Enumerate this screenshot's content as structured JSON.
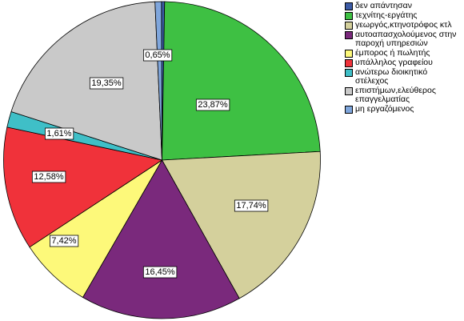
{
  "chart_data": {
    "type": "pie",
    "start_angle_deg": -0.2,
    "direction": "clockwise",
    "slices": [
      {
        "label": "δεν απάντησαν",
        "value": 0.32,
        "pct_label": "",
        "color": "#3c5ba6"
      },
      {
        "label": "τεχνίτης-εργάτης",
        "value": 23.87,
        "pct_label": "23,87%",
        "color": "#3ec043"
      },
      {
        "label": "γεωργός,κτηνοτρόφος κτλ",
        "value": 17.74,
        "pct_label": "17,74%",
        "color": "#d4d09c"
      },
      {
        "label": "αυτοαπασχολούμενος στην\nπαροχή υπηρεσιών",
        "value": 16.45,
        "pct_label": "16,45%",
        "color": "#7a297c"
      },
      {
        "label": "έμπορος ή πωλητής",
        "value": 7.42,
        "pct_label": "7,42%",
        "color": "#fdf97a"
      },
      {
        "label": "υπάλληλος γραφείου",
        "value": 12.58,
        "pct_label": "12,58%",
        "color": "#f0323a"
      },
      {
        "label": "ανώτερω διοικητικό\nστέλεχος",
        "value": 1.61,
        "pct_label": "1,61%",
        "color": "#3fbfc7"
      },
      {
        "label": "επιστήμων,ελεύθερος\nεπαγγελματίας",
        "value": 19.35,
        "pct_label": "19,35%",
        "color": "#c9c9c9"
      },
      {
        "label": "μη εργαζόμενος",
        "value": 0.65,
        "pct_label": "0,65%",
        "color": "#7fa6dc"
      }
    ],
    "legend_position": "top-right"
  }
}
